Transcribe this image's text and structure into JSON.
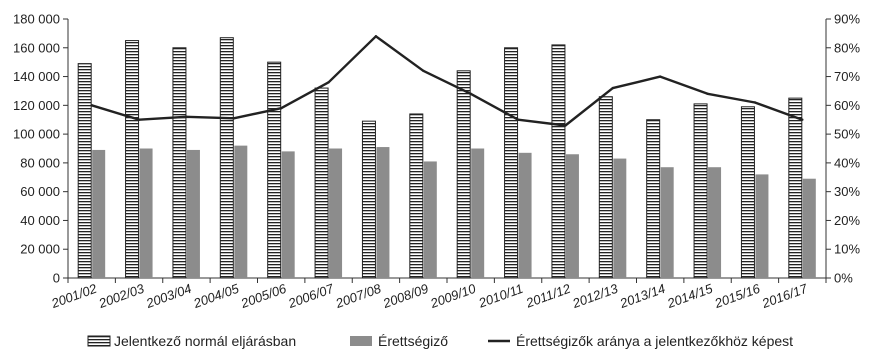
{
  "chart_data": {
    "type": "bar",
    "categories": [
      "2001/02",
      "2002/03",
      "2003/04",
      "2004/05",
      "2005/06",
      "2006/07",
      "2007/08",
      "2008/09",
      "2009/10",
      "2010/11",
      "2011/12",
      "2012/13",
      "2013/14",
      "2014/15",
      "2015/16",
      "2016/17"
    ],
    "series": [
      {
        "name": "Jelentkező normál eljárásban",
        "type": "bar",
        "axis": "left",
        "pattern": "horizontal-stripes",
        "values": [
          149000,
          165000,
          160000,
          167000,
          150000,
          132000,
          109000,
          114000,
          144000,
          160000,
          162000,
          126000,
          110000,
          121000,
          119000,
          125000
        ]
      },
      {
        "name": "Érettségiző",
        "type": "bar",
        "axis": "left",
        "color": "#8c8c8c",
        "values": [
          89000,
          90000,
          89000,
          92000,
          88000,
          90000,
          91000,
          81000,
          90000,
          87000,
          86000,
          83000,
          77000,
          77000,
          72000,
          69000
        ]
      },
      {
        "name": "Érettségizők aránya a jelentkezőkhöz képest",
        "type": "line",
        "axis": "right",
        "color": "#222222",
        "values": [
          60,
          55,
          56,
          55.5,
          59,
          68,
          84,
          72,
          64,
          55,
          53,
          66,
          70,
          64,
          61,
          55
        ]
      }
    ],
    "left_axis": {
      "min": 0,
      "max": 180000,
      "step": 20000,
      "tick_labels": [
        "0",
        "20 000",
        "40 000",
        "60 000",
        "80 000",
        "100 000",
        "120 000",
        "140 000",
        "160 000",
        "180 000"
      ]
    },
    "right_axis": {
      "min": 0,
      "max": 90,
      "step": 10,
      "tick_labels": [
        "0%",
        "10%",
        "20%",
        "30%",
        "40%",
        "50%",
        "60%",
        "70%",
        "80%",
        "90%"
      ]
    },
    "grid": false,
    "legend_position": "bottom",
    "legend": [
      {
        "label": "Jelentkező normál eljárásban",
        "key": "striped"
      },
      {
        "label": "Érettségiző",
        "key": "gray"
      },
      {
        "label": "Érettségizők aránya a jelentkezőkhöz képest",
        "key": "line"
      }
    ]
  }
}
